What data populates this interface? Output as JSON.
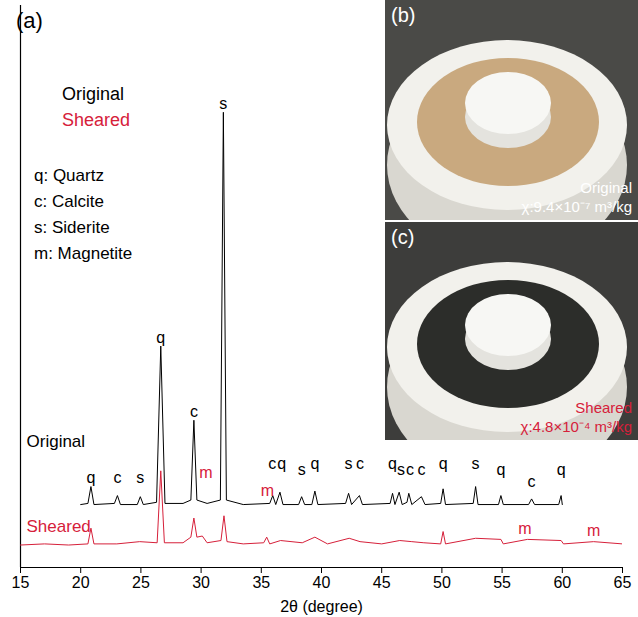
{
  "chart_data": {
    "type": "line",
    "panel_label": "(a)",
    "x_label": "2θ (degree)",
    "xlim": [
      15,
      65
    ],
    "xticks": [
      15,
      20,
      25,
      30,
      35,
      40,
      45,
      50,
      55,
      60,
      65
    ],
    "ylim": [
      0,
      500
    ],
    "tick_labels": "x",
    "legend": "top-left",
    "phase_key": [
      "q: Quartz",
      "c: Calcite",
      "s: Siderite",
      "m: Magnetite"
    ],
    "series": [
      {
        "name": "Original",
        "color": "#000000",
        "x": [
          20,
          20.6,
          20.85,
          21.1,
          22.8,
          23.05,
          23.3,
          24.7,
          24.95,
          25.2,
          26.3,
          26.65,
          27.0,
          28.5,
          29.15,
          29.4,
          29.65,
          30.5,
          31.6,
          31.85,
          32.1,
          33.5,
          35.7,
          35.95,
          36.2,
          36.55,
          36.8,
          38.1,
          38.35,
          38.6,
          39.2,
          39.45,
          39.7,
          42.0,
          42.25,
          42.5,
          43.15,
          43.4,
          45.7,
          45.9,
          46.1,
          46.45,
          46.7,
          47.1,
          47.25,
          47.5,
          48.3,
          48.6,
          49.9,
          50.1,
          50.3,
          52.6,
          52.8,
          53.0,
          54.7,
          54.9,
          55.1,
          57.2,
          57.45,
          57.7,
          59.7,
          59.9,
          60
        ],
        "values": [
          56,
          57,
          72,
          56,
          57,
          64,
          56,
          56,
          63,
          56,
          58,
          197,
          57,
          57,
          60,
          131,
          60,
          57,
          60,
          405,
          60,
          56,
          57,
          64,
          56,
          67,
          56,
          56,
          63,
          56,
          56,
          68,
          56,
          57,
          66,
          56,
          64,
          56,
          57,
          66,
          56,
          67,
          56,
          58,
          66,
          56,
          63,
          56,
          57,
          70,
          56,
          57,
          72,
          56,
          56,
          64,
          56,
          56,
          61,
          56,
          56,
          64,
          56
        ]
      },
      {
        "name": "Sheared",
        "color": "#d6203a",
        "x": [
          15,
          17,
          19,
          20.6,
          20.85,
          21.1,
          23,
          24.9,
          26.35,
          26.65,
          26.95,
          28.5,
          29.15,
          29.4,
          29.65,
          30.1,
          30.5,
          31.65,
          31.9,
          32.15,
          33.5,
          35.2,
          35.45,
          35.7,
          36.6,
          38.4,
          39.45,
          40.5,
          42.3,
          43.2,
          45,
          46.5,
          47.5,
          48.5,
          49.9,
          50.1,
          50.3,
          52.8,
          54.9,
          55.1,
          57.1,
          59.9,
          60.1,
          62.6,
          65
        ],
        "values": [
          20,
          21,
          20,
          21,
          35,
          21,
          21,
          23,
          22,
          86,
          22,
          22,
          27,
          44,
          27,
          28,
          22,
          24,
          46,
          23,
          21,
          22,
          27,
          21,
          24,
          22,
          27,
          21,
          26,
          23,
          21,
          24,
          23,
          22,
          21,
          32,
          21,
          26,
          25,
          21,
          25,
          24,
          21,
          23,
          21
        ]
      }
    ],
    "trace_labels": [
      {
        "text": "Original",
        "x": 15.5,
        "y": 112,
        "color": "#000000"
      },
      {
        "text": "Sheared",
        "x": 15.5,
        "y": 36,
        "color": "#d6203a"
      }
    ],
    "annotations": [
      {
        "text": "q",
        "x": 20.85,
        "y": 75,
        "color": "#000000"
      },
      {
        "text": "c",
        "x": 23.05,
        "y": 75,
        "color": "#000000"
      },
      {
        "text": "s",
        "x": 24.95,
        "y": 75,
        "color": "#000000"
      },
      {
        "text": "q",
        "x": 26.65,
        "y": 200,
        "color": "#000000"
      },
      {
        "text": "c",
        "x": 29.4,
        "y": 134,
        "color": "#000000"
      },
      {
        "text": "s",
        "x": 31.85,
        "y": 408,
        "color": "#000000"
      },
      {
        "text": "c",
        "x": 35.9,
        "y": 88,
        "color": "#000000"
      },
      {
        "text": "q",
        "x": 36.7,
        "y": 88,
        "color": "#000000"
      },
      {
        "text": "s",
        "x": 38.35,
        "y": 82,
        "color": "#000000"
      },
      {
        "text": "q",
        "x": 39.45,
        "y": 88,
        "color": "#000000"
      },
      {
        "text": "s",
        "x": 42.25,
        "y": 88,
        "color": "#000000"
      },
      {
        "text": "c",
        "x": 43.2,
        "y": 88,
        "color": "#000000"
      },
      {
        "text": "q",
        "x": 45.9,
        "y": 88,
        "color": "#000000"
      },
      {
        "text": "s",
        "x": 46.6,
        "y": 82,
        "color": "#000000"
      },
      {
        "text": "c",
        "x": 47.35,
        "y": 82,
        "color": "#000000"
      },
      {
        "text": "c",
        "x": 48.3,
        "y": 82,
        "color": "#000000"
      },
      {
        "text": "q",
        "x": 50.1,
        "y": 88,
        "color": "#000000"
      },
      {
        "text": "s",
        "x": 52.8,
        "y": 88,
        "color": "#000000"
      },
      {
        "text": "q",
        "x": 54.9,
        "y": 82,
        "color": "#000000"
      },
      {
        "text": "c",
        "x": 57.45,
        "y": 72,
        "color": "#000000"
      },
      {
        "text": "q",
        "x": 59.9,
        "y": 82,
        "color": "#000000"
      },
      {
        "text": "m",
        "x": 30.4,
        "y": 80,
        "color": "#d6203a"
      },
      {
        "text": "m",
        "x": 35.5,
        "y": 64,
        "color": "#d6203a"
      },
      {
        "text": "m",
        "x": 56.9,
        "y": 30,
        "color": "#d6203a"
      },
      {
        "text": "m",
        "x": 62.6,
        "y": 28,
        "color": "#d6203a"
      }
    ]
  },
  "insets": [
    {
      "label": "(b)",
      "caption": "Original",
      "chi": "χ:9.4×10⁻⁷ m³/kg",
      "color": "#ffffff",
      "sample_color": "#c9a97f"
    },
    {
      "label": "(c)",
      "caption": "Sheared",
      "chi": "χ:4.8×10⁻⁴ m³/kg",
      "color": "#d6203a",
      "sample_color": "#2c2d2a"
    }
  ]
}
